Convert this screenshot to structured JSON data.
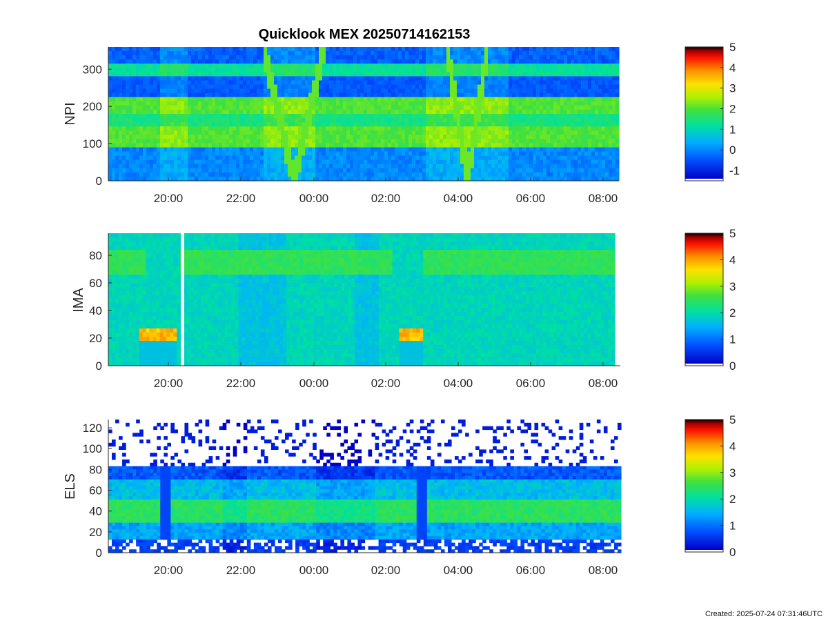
{
  "title": "Quicklook MEX 20250714162153",
  "footer": "Created: 2025-07-24 07:31:46UTC",
  "colormap": [
    "#0000ff",
    "#0080ff",
    "#00d0a0",
    "#40e040",
    "#c0f000",
    "#ffe000",
    "#ff8000",
    "#ff0000",
    "#000000"
  ],
  "chart_data": [
    {
      "type": "heatmap",
      "title": "Quicklook MEX 20250714162153",
      "ylabel": "NPI",
      "yticks": [
        0,
        100,
        200,
        300
      ],
      "ylim": [
        0,
        360
      ],
      "xticks": [
        "20:00",
        "22:00",
        "00:00",
        "02:00",
        "04:00",
        "06:00",
        "08:00"
      ],
      "x_hours": [
        18.3,
        32.4
      ],
      "colorbar": {
        "ticks": [
          "5",
          "4",
          "3",
          "2",
          "1",
          "0",
          "-1"
        ],
        "range": [
          -1.5,
          5
        ]
      }
    },
    {
      "type": "heatmap",
      "ylabel": "IMA",
      "yticks": [
        0,
        20,
        40,
        60,
        80
      ],
      "ylim": [
        0,
        96
      ],
      "xticks": [
        "20:00",
        "22:00",
        "00:00",
        "02:00",
        "04:00",
        "06:00",
        "08:00"
      ],
      "x_hours": [
        18.3,
        32.3
      ],
      "colorbar": {
        "ticks": [
          "5",
          "4",
          "3",
          "2",
          "1",
          "0"
        ],
        "range": [
          0,
          5
        ]
      }
    },
    {
      "type": "heatmap",
      "ylabel": "ELS",
      "yticks": [
        0,
        20,
        40,
        60,
        80,
        100,
        120
      ],
      "ylim": [
        0,
        128
      ],
      "xticks": [
        "20:00",
        "22:00",
        "00:00",
        "02:00",
        "04:00",
        "06:00",
        "08:00"
      ],
      "x_hours": [
        18.3,
        32.4
      ],
      "colorbar": {
        "ticks": [
          "5",
          "4",
          "3",
          "2",
          "1",
          "0"
        ],
        "range": [
          0,
          5
        ]
      }
    }
  ]
}
